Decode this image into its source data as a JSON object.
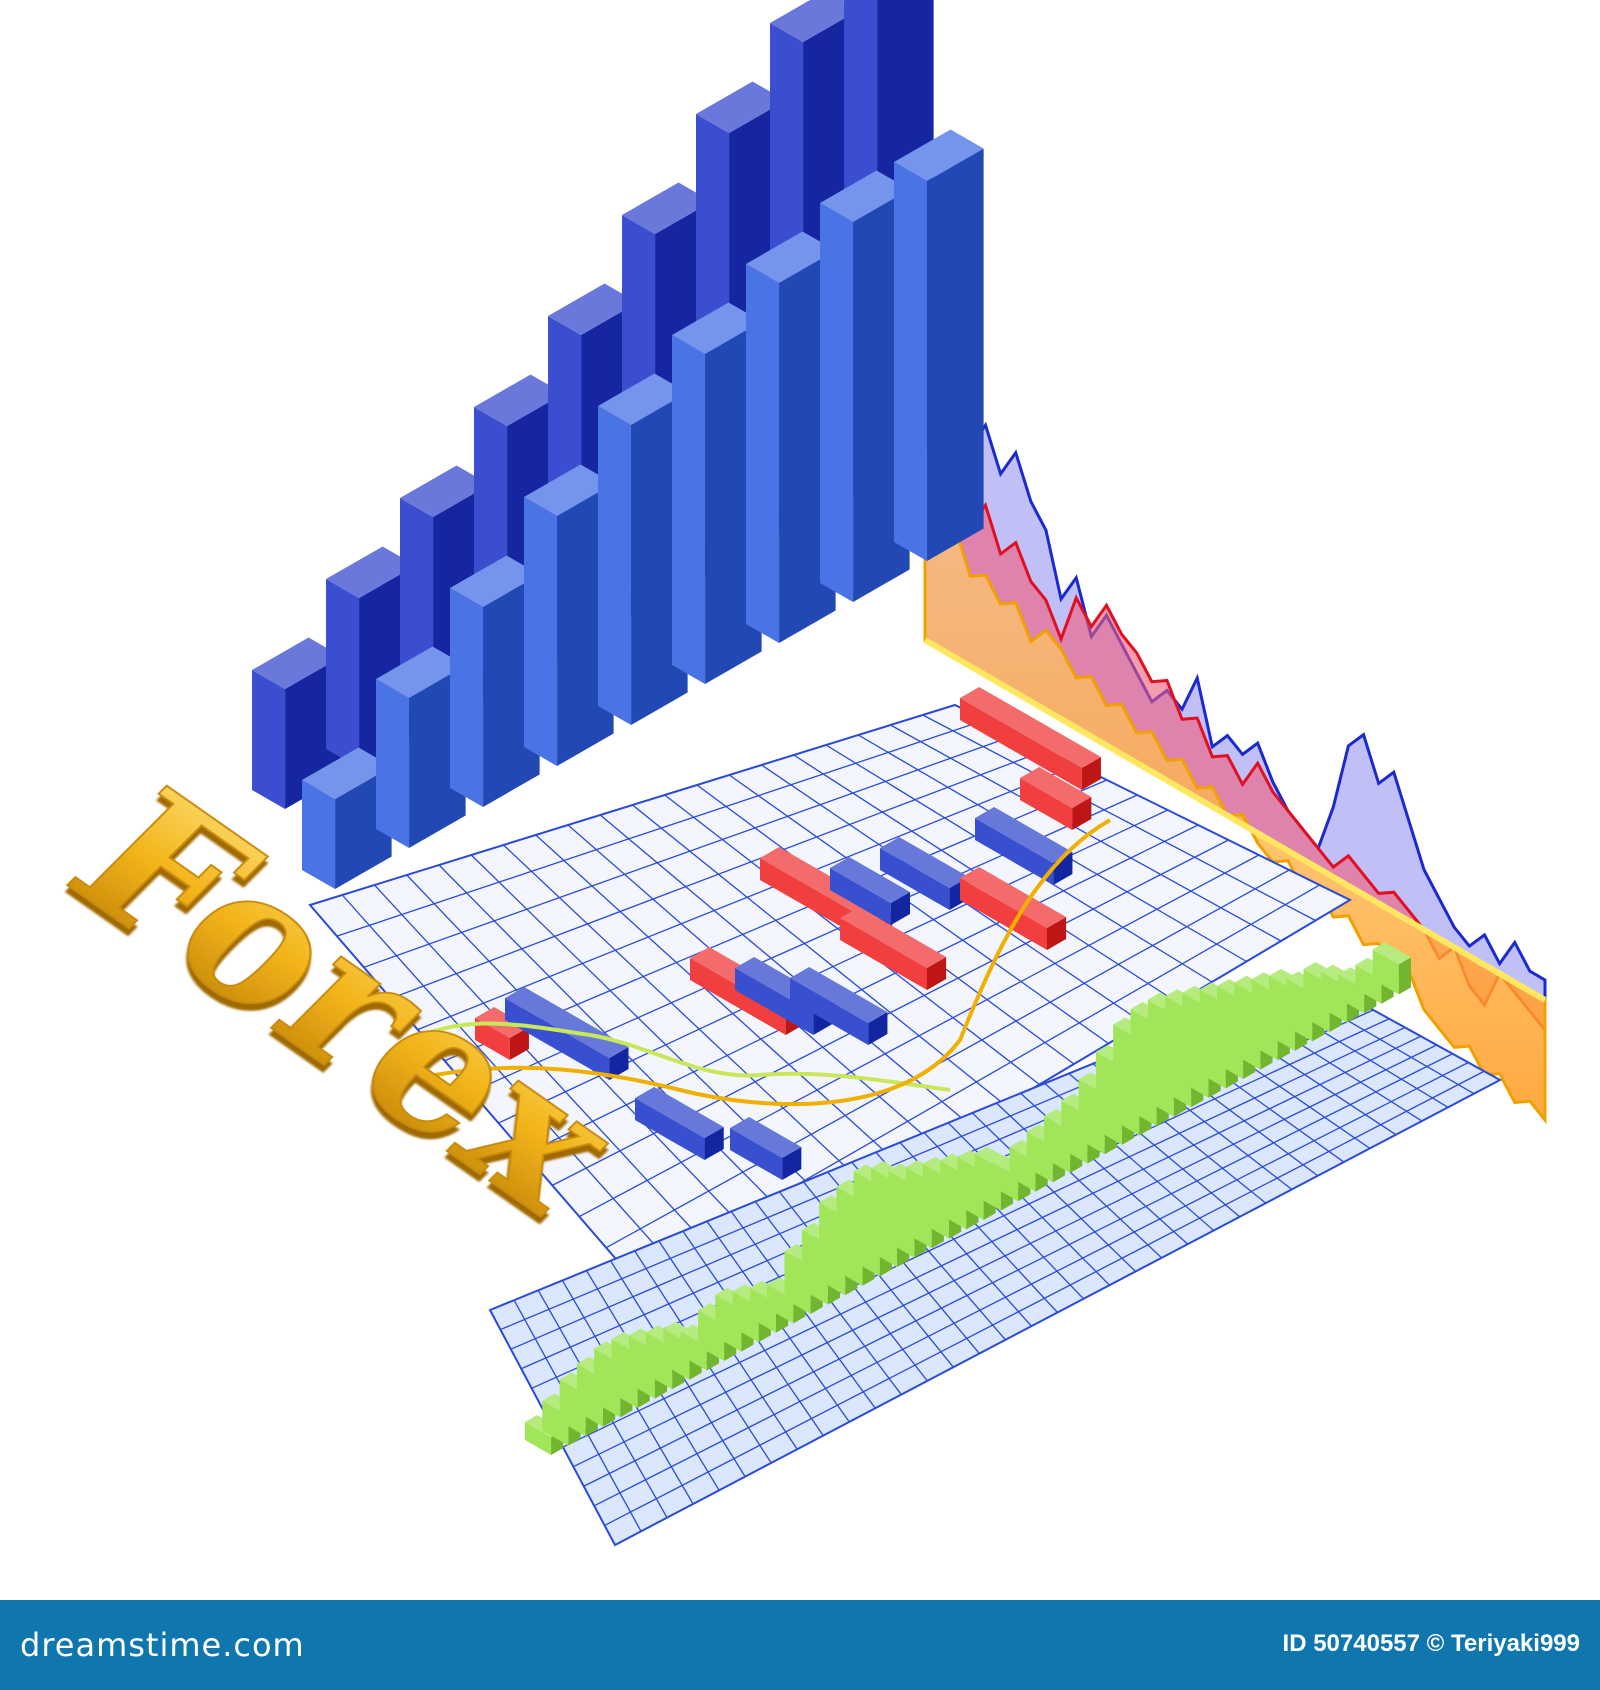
{
  "illustration": {
    "logo_text": "Forex",
    "watermark": "dreamstime",
    "colors": {
      "bars": "#1f3fd0",
      "bull_candle": "#ee1c1c",
      "bear_candle": "#1530c8",
      "grid": "#2a4ad8",
      "area_blue": "#8c8cf0",
      "area_red": "#f05a7a",
      "area_orange": "#ffb040",
      "volume_bars": "#8fe23a",
      "gold": "#f2b418"
    }
  },
  "footer": {
    "brand": "dreamstime.com",
    "credit": "ID 50740557 © Teriyaki999",
    "background": "#0f76ae"
  }
}
